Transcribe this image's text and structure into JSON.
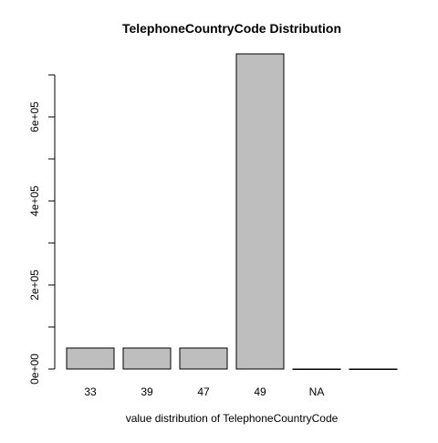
{
  "chart_data": {
    "type": "bar",
    "title": "TelephoneCountryCode Distribution",
    "xlabel": "value distribution of TelephoneCountryCode",
    "ylabel": "",
    "categories": [
      "33",
      "39",
      "47",
      "49",
      "NA",
      ""
    ],
    "values": [
      50000,
      50000,
      50000,
      750000,
      0,
      0
    ],
    "ylim": [
      0,
      750000
    ],
    "y_ticks": [
      0,
      100000,
      200000,
      300000,
      400000,
      500000,
      600000,
      700000
    ],
    "y_tick_labels": [
      "0e+00",
      "",
      "2e+05",
      "",
      "4e+05",
      "",
      "6e+05",
      ""
    ],
    "bar_color": "#bebebe",
    "bar_border_color": "#000000",
    "grid": false,
    "legend": "none"
  }
}
